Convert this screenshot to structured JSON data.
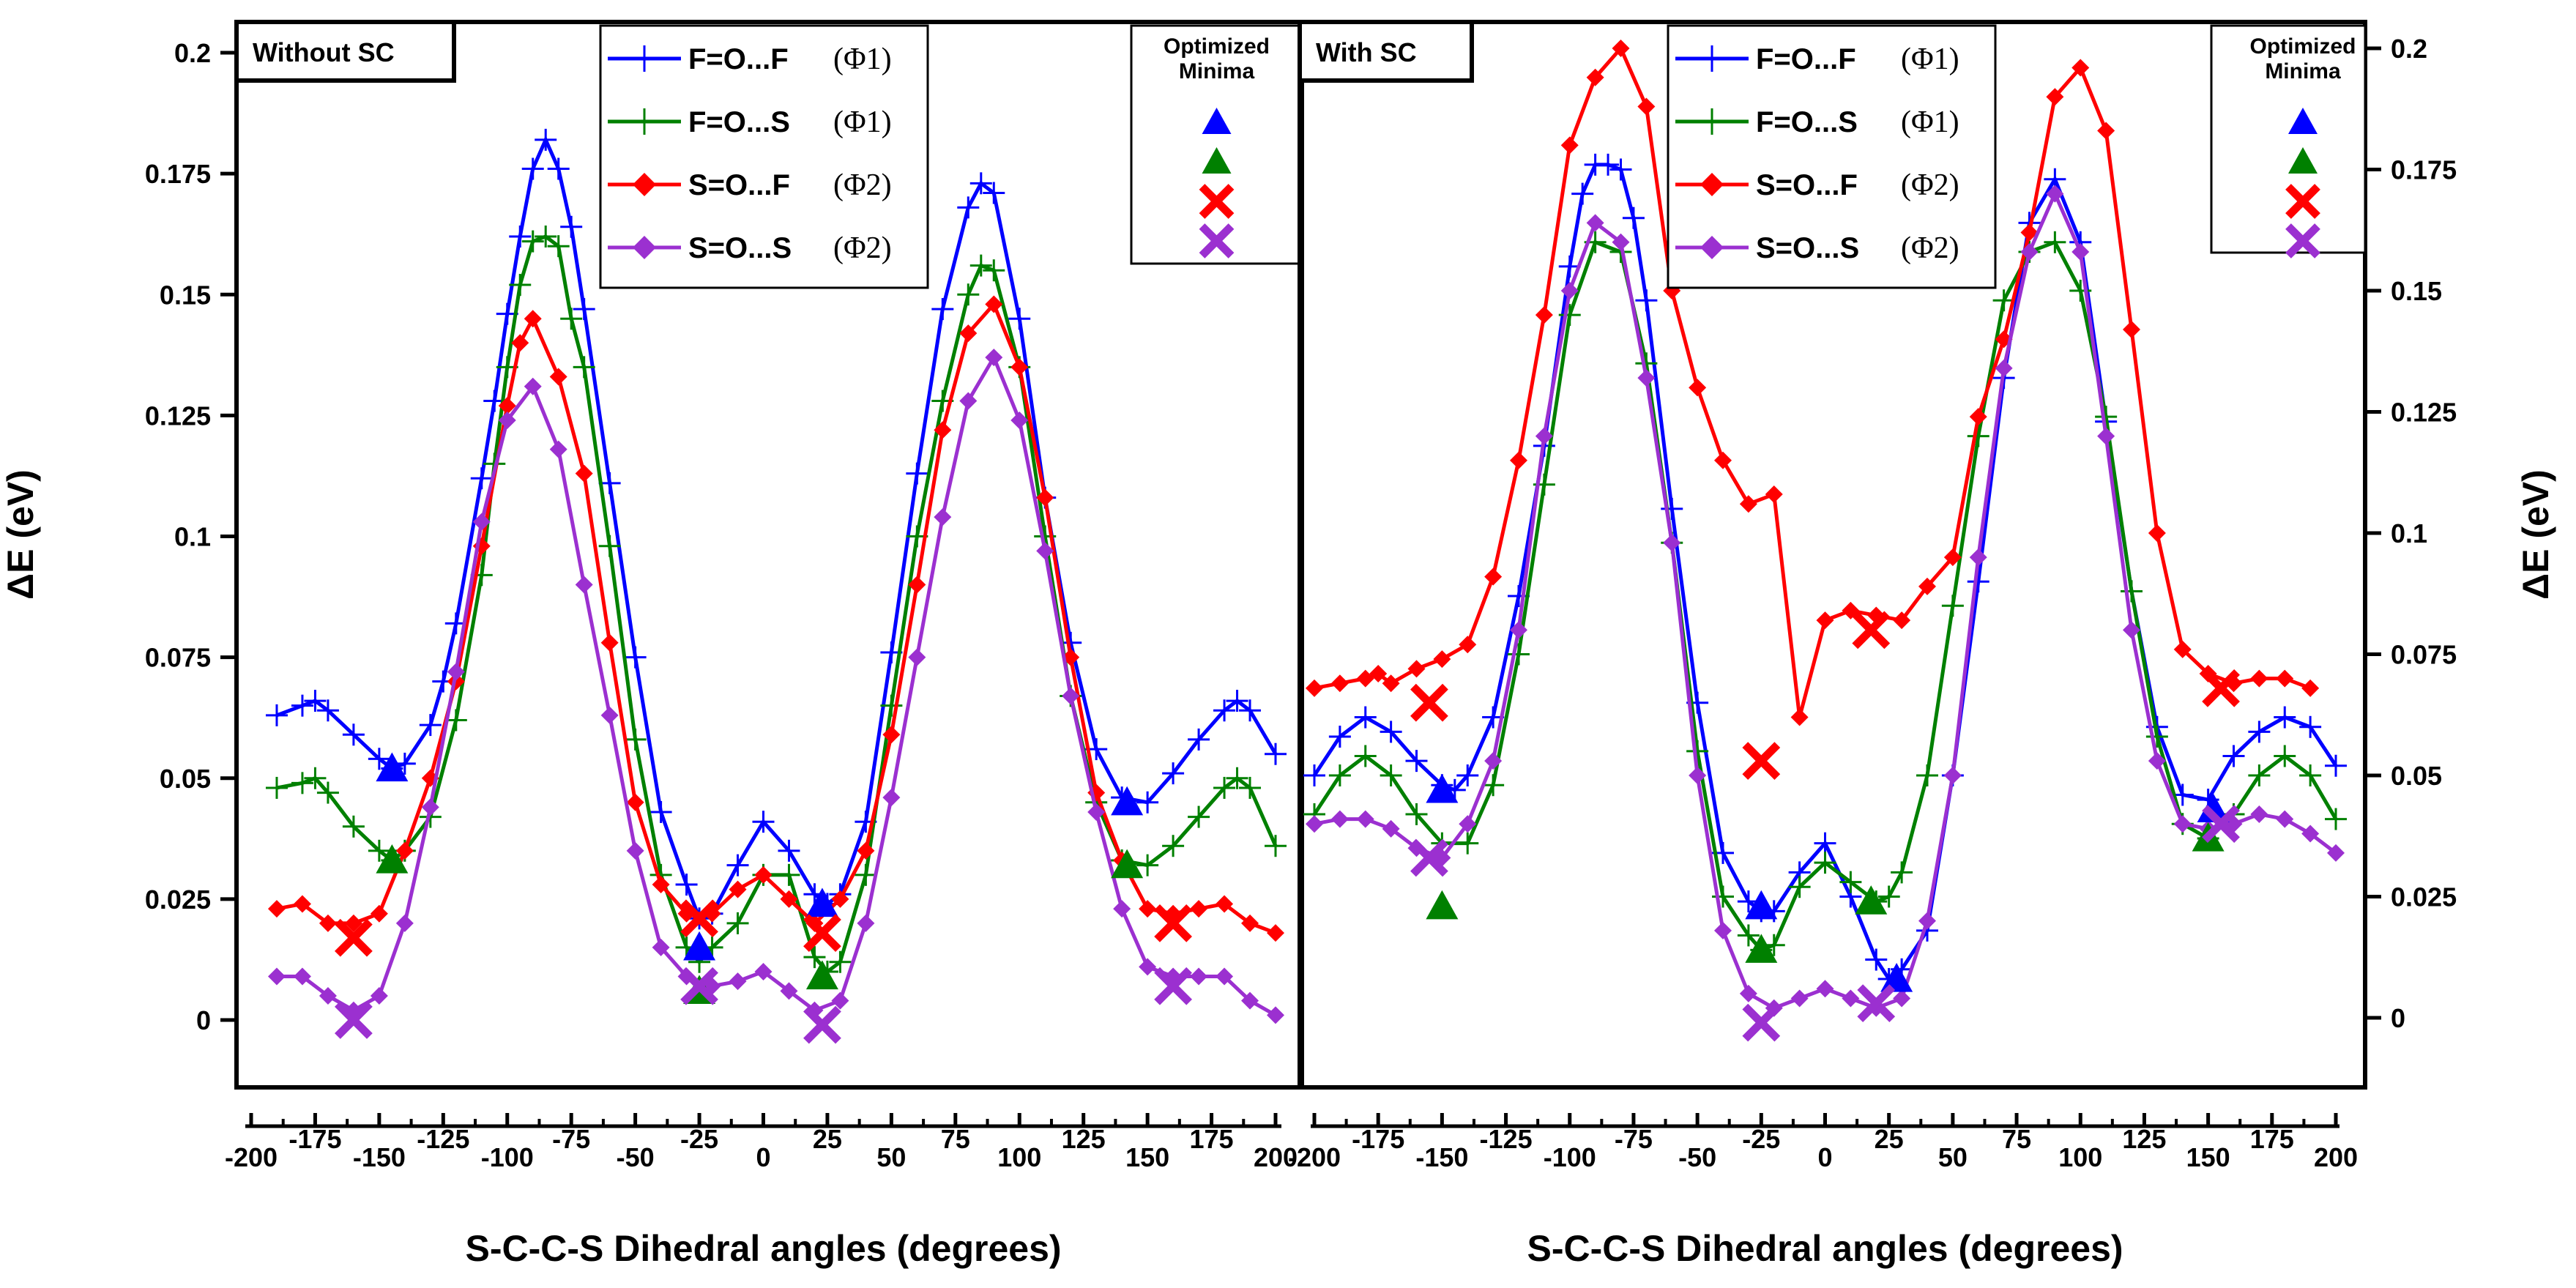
{
  "colors": {
    "ff": "#0000ff",
    "fs": "#008000",
    "sf": "#ff0000",
    "ss": "#9b30d0"
  },
  "chart_data": [
    {
      "type": "line",
      "panel_label": "Without SC",
      "xlabel": "S-C-C-S Dihedral angles (degrees)",
      "ylabel": "ΔE (eV)",
      "y_axis_side": "left",
      "xlim": [
        -205,
        205
      ],
      "ylim": [
        -0.015,
        0.2
      ],
      "xticks": [
        -200,
        -175,
        -150,
        -125,
        -100,
        -75,
        -50,
        -25,
        0,
        25,
        50,
        75,
        100,
        125,
        150,
        175,
        200
      ],
      "yticks": [
        0,
        0.025,
        0.05,
        0.075,
        0.1,
        0.125,
        0.15,
        0.175,
        0.2
      ],
      "series": [
        {
          "name": "F=O...F",
          "phi": "(Φ1)",
          "color_key": "ff",
          "marker": "plus",
          "x": [
            -190,
            -180,
            -175,
            -170,
            -160,
            -150,
            -145,
            -140,
            -130,
            -125,
            -120,
            -110,
            -105,
            -100,
            -95,
            -90,
            -85,
            -80,
            -75,
            -70,
            -60,
            -50,
            -40,
            -30,
            -25,
            -20,
            -10,
            0,
            10,
            20,
            25,
            30,
            40,
            50,
            60,
            70,
            80,
            85,
            90,
            100,
            110,
            120,
            130,
            140,
            150,
            160,
            170,
            180,
            185,
            190,
            200
          ],
          "y": [
            0.063,
            0.065,
            0.066,
            0.064,
            0.059,
            0.054,
            0.052,
            0.053,
            0.061,
            0.07,
            0.082,
            0.112,
            0.128,
            0.146,
            0.162,
            0.176,
            0.182,
            0.176,
            0.164,
            0.147,
            0.111,
            0.075,
            0.043,
            0.028,
            0.021,
            0.022,
            0.032,
            0.041,
            0.035,
            0.026,
            0.024,
            0.026,
            0.041,
            0.076,
            0.113,
            0.147,
            0.168,
            0.173,
            0.171,
            0.145,
            0.108,
            0.078,
            0.056,
            0.046,
            0.045,
            0.051,
            0.058,
            0.064,
            0.066,
            0.064,
            0.055
          ]
        },
        {
          "name": "F=O...S",
          "phi": "(Φ1)",
          "color_key": "fs",
          "marker": "plus",
          "x": [
            -190,
            -180,
            -175,
            -170,
            -160,
            -150,
            -145,
            -140,
            -130,
            -120,
            -110,
            -105,
            -100,
            -95,
            -90,
            -85,
            -80,
            -75,
            -70,
            -60,
            -50,
            -40,
            -30,
            -25,
            -20,
            -10,
            0,
            10,
            20,
            25,
            30,
            40,
            50,
            60,
            70,
            80,
            85,
            90,
            100,
            110,
            120,
            130,
            140,
            150,
            160,
            170,
            180,
            185,
            190,
            200
          ],
          "y": [
            0.048,
            0.049,
            0.05,
            0.047,
            0.04,
            0.035,
            0.033,
            0.035,
            0.042,
            0.062,
            0.092,
            0.115,
            0.135,
            0.152,
            0.161,
            0.162,
            0.16,
            0.145,
            0.135,
            0.098,
            0.058,
            0.03,
            0.015,
            0.012,
            0.015,
            0.02,
            0.03,
            0.03,
            0.013,
            0.01,
            0.012,
            0.03,
            0.065,
            0.1,
            0.128,
            0.15,
            0.156,
            0.155,
            0.135,
            0.1,
            0.067,
            0.045,
            0.033,
            0.032,
            0.036,
            0.042,
            0.048,
            0.05,
            0.048,
            0.036
          ]
        },
        {
          "name": "S=O...F",
          "phi": "(Φ2)",
          "color_key": "sf",
          "marker": "diamond",
          "x": [
            -190,
            -180,
            -170,
            -160,
            -150,
            -140,
            -130,
            -120,
            -110,
            -100,
            -95,
            -90,
            -80,
            -70,
            -60,
            -50,
            -40,
            -30,
            -20,
            -10,
            0,
            10,
            20,
            30,
            40,
            50,
            60,
            70,
            80,
            90,
            100,
            110,
            120,
            130,
            140,
            150,
            160,
            170,
            180,
            190,
            200
          ],
          "y": [
            0.023,
            0.024,
            0.02,
            0.02,
            0.022,
            0.035,
            0.05,
            0.07,
            0.098,
            0.127,
            0.14,
            0.145,
            0.133,
            0.113,
            0.078,
            0.045,
            0.028,
            0.022,
            0.022,
            0.027,
            0.03,
            0.025,
            0.02,
            0.025,
            0.035,
            0.059,
            0.09,
            0.122,
            0.142,
            0.148,
            0.135,
            0.108,
            0.075,
            0.047,
            0.033,
            0.023,
            0.022,
            0.023,
            0.024,
            0.02,
            0.018
          ]
        },
        {
          "name": "S=O...S",
          "phi": "(Φ2)",
          "color_key": "ss",
          "marker": "diamond",
          "x": [
            -190,
            -180,
            -170,
            -160,
            -150,
            -140,
            -130,
            -120,
            -110,
            -100,
            -90,
            -80,
            -70,
            -60,
            -50,
            -40,
            -30,
            -20,
            -10,
            0,
            10,
            20,
            30,
            40,
            50,
            60,
            70,
            80,
            90,
            100,
            110,
            120,
            130,
            140,
            150,
            160,
            170,
            180,
            190,
            200
          ],
          "y": [
            0.009,
            0.009,
            0.005,
            0.002,
            0.005,
            0.02,
            0.044,
            0.072,
            0.103,
            0.124,
            0.131,
            0.118,
            0.09,
            0.063,
            0.035,
            0.015,
            0.009,
            0.007,
            0.008,
            0.01,
            0.006,
            0.002,
            0.004,
            0.02,
            0.046,
            0.075,
            0.104,
            0.128,
            0.137,
            0.124,
            0.097,
            0.067,
            0.043,
            0.023,
            0.011,
            0.009,
            0.009,
            0.009,
            0.004,
            0.001
          ]
        }
      ],
      "minima_label": [
        "Optimized",
        "Minima"
      ],
      "minima": [
        {
          "color_key": "ff",
          "marker": "triangle",
          "x": [
            -145,
            -25,
            23,
            142
          ],
          "y": [
            0.052,
            0.015,
            0.024,
            0.045
          ]
        },
        {
          "color_key": "fs",
          "marker": "triangle",
          "x": [
            -145,
            -25,
            23,
            142
          ],
          "y": [
            0.033,
            0.006,
            0.009,
            0.032
          ]
        },
        {
          "color_key": "sf",
          "marker": "cross",
          "x": [
            -160,
            -25,
            23,
            160
          ],
          "y": [
            0.017,
            0.021,
            0.018,
            0.02
          ]
        },
        {
          "color_key": "ss",
          "marker": "cross",
          "x": [
            -160,
            -25,
            23,
            160
          ],
          "y": [
            0.0,
            0.007,
            -0.001,
            0.007
          ]
        }
      ]
    },
    {
      "type": "line",
      "panel_label": "With SC",
      "xlabel": "S-C-C-S Dihedral angles (degrees)",
      "ylabel": "ΔE (eV)",
      "y_axis_side": "right",
      "xlim": [
        -205,
        205
      ],
      "ylim": [
        -0.015,
        0.2
      ],
      "xticks": [
        -200,
        -175,
        -150,
        -125,
        -100,
        -75,
        -50,
        -25,
        0,
        25,
        50,
        75,
        100,
        125,
        150,
        175,
        200
      ],
      "yticks": [
        0,
        0.025,
        0.05,
        0.075,
        0.1,
        0.125,
        0.15,
        0.175,
        0.2
      ],
      "series": [
        {
          "name": "F=O...F",
          "phi": "(Φ1)",
          "color_key": "ff",
          "marker": "plus",
          "x": [
            -200,
            -190,
            -180,
            -170,
            -160,
            -150,
            -145,
            -140,
            -130,
            -120,
            -110,
            -100,
            -95,
            -90,
            -85,
            -80,
            -75,
            -70,
            -60,
            -50,
            -40,
            -30,
            -25,
            -20,
            -10,
            0,
            10,
            20,
            25,
            30,
            40,
            50,
            60,
            70,
            80,
            90,
            100,
            110,
            120,
            130,
            140,
            150,
            160,
            170,
            180,
            190,
            200
          ],
          "y": [
            0.05,
            0.058,
            0.062,
            0.059,
            0.053,
            0.048,
            0.047,
            0.05,
            0.062,
            0.087,
            0.118,
            0.155,
            0.17,
            0.176,
            0.176,
            0.175,
            0.165,
            0.148,
            0.105,
            0.065,
            0.034,
            0.024,
            0.022,
            0.022,
            0.03,
            0.036,
            0.025,
            0.012,
            0.008,
            0.01,
            0.018,
            0.05,
            0.09,
            0.132,
            0.164,
            0.173,
            0.16,
            0.123,
            0.088,
            0.06,
            0.046,
            0.045,
            0.054,
            0.059,
            0.062,
            0.06,
            0.052
          ]
        },
        {
          "name": "F=O...S",
          "phi": "(Φ1)",
          "color_key": "fs",
          "marker": "plus",
          "x": [
            -200,
            -190,
            -180,
            -170,
            -160,
            -150,
            -140,
            -130,
            -120,
            -110,
            -100,
            -90,
            -80,
            -70,
            -60,
            -50,
            -40,
            -30,
            -25,
            -20,
            -10,
            0,
            10,
            20,
            25,
            30,
            40,
            50,
            60,
            70,
            80,
            90,
            100,
            110,
            120,
            130,
            140,
            150,
            160,
            170,
            180,
            190,
            200
          ],
          "y": [
            0.042,
            0.05,
            0.054,
            0.05,
            0.042,
            0.036,
            0.036,
            0.048,
            0.075,
            0.11,
            0.145,
            0.16,
            0.158,
            0.135,
            0.098,
            0.055,
            0.025,
            0.017,
            0.014,
            0.015,
            0.027,
            0.032,
            0.028,
            0.024,
            0.025,
            0.03,
            0.05,
            0.085,
            0.12,
            0.148,
            0.158,
            0.16,
            0.15,
            0.124,
            0.088,
            0.058,
            0.04,
            0.037,
            0.042,
            0.05,
            0.054,
            0.05,
            0.041
          ]
        },
        {
          "name": "S=O...F",
          "phi": "(Φ2)",
          "color_key": "sf",
          "marker": "diamond",
          "x": [
            -200,
            -190,
            -180,
            -175,
            -170,
            -160,
            -150,
            -140,
            -130,
            -120,
            -110,
            -100,
            -90,
            -80,
            -70,
            -60,
            -50,
            -40,
            -30,
            -20,
            -10,
            0,
            10,
            20,
            30,
            40,
            50,
            60,
            70,
            80,
            90,
            100,
            110,
            120,
            130,
            140,
            150,
            160,
            170,
            180,
            190
          ],
          "y": [
            0.068,
            0.069,
            0.07,
            0.071,
            0.069,
            0.072,
            0.074,
            0.077,
            0.091,
            0.115,
            0.145,
            0.18,
            0.194,
            0.2,
            0.188,
            0.15,
            0.13,
            0.115,
            0.106,
            0.108,
            0.062,
            0.082,
            0.084,
            0.083,
            0.082,
            0.089,
            0.095,
            0.124,
            0.14,
            0.162,
            0.19,
            0.196,
            0.183,
            0.142,
            0.1,
            0.076,
            0.071,
            0.069,
            0.07,
            0.07,
            0.068
          ]
        },
        {
          "name": "S=O...S",
          "phi": "(Φ2)",
          "color_key": "ss",
          "marker": "diamond",
          "x": [
            -200,
            -190,
            -180,
            -170,
            -160,
            -150,
            -140,
            -130,
            -120,
            -110,
            -100,
            -90,
            -80,
            -70,
            -60,
            -50,
            -40,
            -30,
            -20,
            -10,
            0,
            10,
            20,
            30,
            40,
            50,
            60,
            70,
            80,
            90,
            100,
            110,
            120,
            130,
            140,
            150,
            160,
            170,
            180,
            190,
            200
          ],
          "y": [
            0.04,
            0.041,
            0.041,
            0.039,
            0.035,
            0.033,
            0.04,
            0.053,
            0.08,
            0.12,
            0.15,
            0.164,
            0.16,
            0.132,
            0.098,
            0.05,
            0.018,
            0.005,
            0.002,
            0.004,
            0.006,
            0.004,
            0.002,
            0.004,
            0.02,
            0.05,
            0.095,
            0.134,
            0.158,
            0.17,
            0.158,
            0.12,
            0.08,
            0.053,
            0.04,
            0.039,
            0.04,
            0.042,
            0.041,
            0.038,
            0.034
          ]
        }
      ],
      "minima_label": [
        "Optimized",
        "Minima"
      ],
      "minima": [
        {
          "color_key": "ff",
          "marker": "triangle",
          "x": [
            -150,
            -25,
            28,
            152
          ],
          "y": [
            0.047,
            0.023,
            0.008,
            0.043
          ]
        },
        {
          "color_key": "fs",
          "marker": "triangle",
          "x": [
            -150,
            -25,
            18,
            150
          ],
          "y": [
            0.023,
            0.014,
            0.024,
            0.037
          ]
        },
        {
          "color_key": "sf",
          "marker": "cross",
          "x": [
            -155,
            -25,
            18,
            155
          ],
          "y": [
            0.065,
            0.053,
            0.08,
            0.068
          ]
        },
        {
          "color_key": "ss",
          "marker": "cross",
          "x": [
            -155,
            -25,
            20,
            155
          ],
          "y": [
            0.033,
            -0.001,
            0.003,
            0.04
          ]
        }
      ]
    }
  ]
}
